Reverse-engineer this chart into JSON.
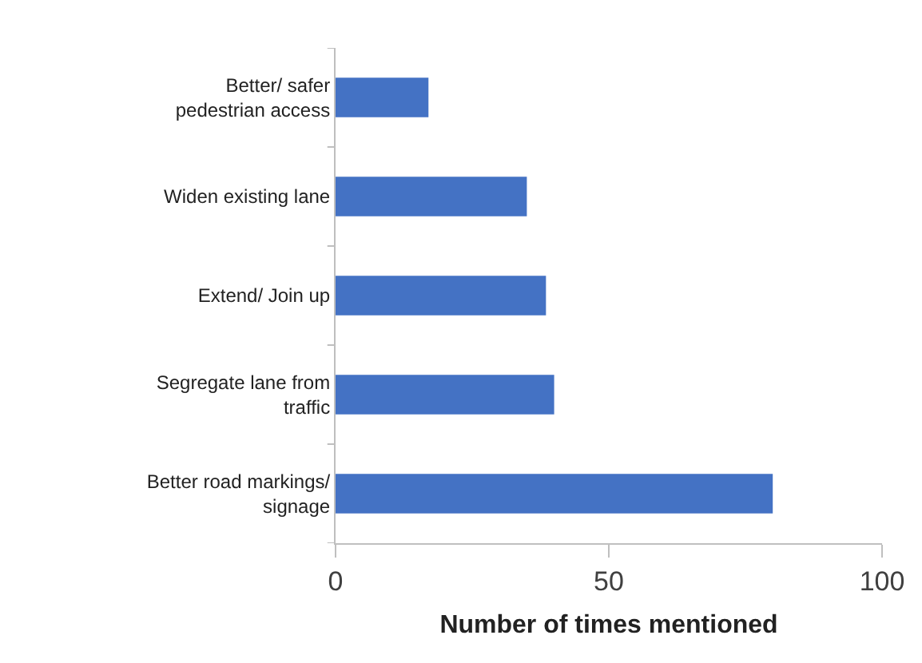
{
  "chart_data": {
    "type": "bar",
    "orientation": "horizontal",
    "xlabel": "Number of times mentioned",
    "categories": [
      "Better/ safer pedestrian access",
      "Widen existing lane",
      "Extend/ Join up",
      "Segregate lane from traffic",
      "Better road markings/ signage"
    ],
    "values": [
      17,
      35,
      38.5,
      40,
      80
    ],
    "color": "#4472c4",
    "xlim": [
      0,
      100
    ],
    "xticks": [
      0,
      50,
      100
    ],
    "grid": false,
    "legend": false
  }
}
